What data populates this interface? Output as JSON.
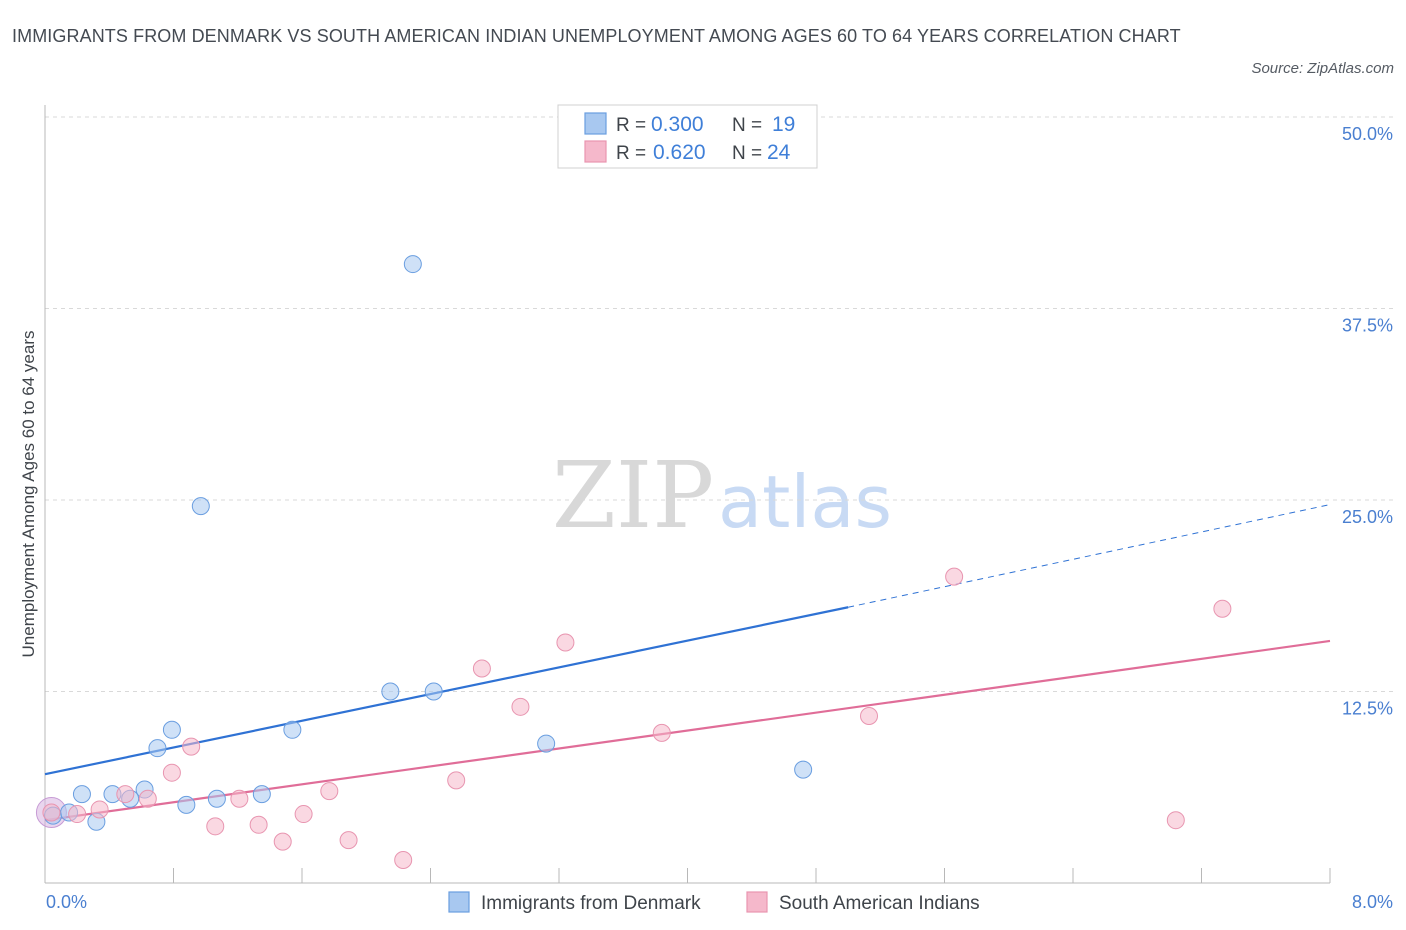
{
  "title": "IMMIGRANTS FROM DENMARK VS SOUTH AMERICAN INDIAN UNEMPLOYMENT AMONG AGES 60 TO 64 YEARS CORRELATION CHART",
  "source": "Source: ZipAtlas.com",
  "watermark": {
    "zip": "ZIP",
    "atlas": "atlas"
  },
  "legend_top": [
    {
      "r_label": "R = ",
      "r_value": "0.300",
      "n_label": "N = ",
      "n_value": "19",
      "color": "#a8c8f0"
    },
    {
      "r_label": "R = ",
      "r_value": "0.620",
      "n_label": "N = ",
      "n_value": "24",
      "color": "#f5b8cb"
    }
  ],
  "legend_bottom": [
    {
      "label": "Immigrants from Denmark",
      "color": "#a8c8f0"
    },
    {
      "label": "South American Indians",
      "color": "#f5b8cb"
    }
  ],
  "chart_data": {
    "type": "scatter",
    "title": "IMMIGRANTS FROM DENMARK VS SOUTH AMERICAN INDIAN UNEMPLOYMENT AMONG AGES 60 TO 64 YEARS CORRELATION CHART",
    "xlabel": "",
    "ylabel": "Unemployment Among Ages 60 to 64 years",
    "xlim": [
      0,
      8
    ],
    "ylim": [
      0,
      50
    ],
    "x_tick_labels": [
      "0.0%",
      "8.0%"
    ],
    "y_ticks": [
      12.5,
      25.0,
      37.5,
      50.0
    ],
    "y_tick_labels": [
      "12.5%",
      "25.0%",
      "37.5%",
      "50.0%"
    ],
    "grid": true,
    "series": [
      {
        "name": "Immigrants from Denmark",
        "color": "#a8c8f0",
        "stroke": "#6a9ee0",
        "line_color": "#2f72d4",
        "points": [
          {
            "x": 0.05,
            "y": 4.4
          },
          {
            "x": 0.15,
            "y": 4.6
          },
          {
            "x": 0.23,
            "y": 5.8
          },
          {
            "x": 0.32,
            "y": 4.0
          },
          {
            "x": 0.42,
            "y": 5.8
          },
          {
            "x": 0.53,
            "y": 5.5
          },
          {
            "x": 0.62,
            "y": 6.1
          },
          {
            "x": 0.7,
            "y": 8.8
          },
          {
            "x": 0.79,
            "y": 10.0
          },
          {
            "x": 0.88,
            "y": 5.1
          },
          {
            "x": 0.97,
            "y": 24.6
          },
          {
            "x": 1.07,
            "y": 5.5
          },
          {
            "x": 1.35,
            "y": 5.8
          },
          {
            "x": 1.54,
            "y": 10.0
          },
          {
            "x": 2.29,
            "y": 40.4
          },
          {
            "x": 2.15,
            "y": 12.5
          },
          {
            "x": 2.42,
            "y": 12.5
          },
          {
            "x": 3.12,
            "y": 9.1
          },
          {
            "x": 4.72,
            "y": 7.4
          }
        ],
        "trend": {
          "x0": 0.0,
          "y0": 7.1,
          "x1": 5.0,
          "y1": 18.0,
          "x_dash_end": 8.0,
          "y_dash_end": 24.7
        }
      },
      {
        "name": "South American Indians",
        "color": "#f5b8cb",
        "stroke": "#e895b0",
        "line_color": "#e06d98",
        "points": [
          {
            "x": 0.04,
            "y": 4.6
          },
          {
            "x": 0.2,
            "y": 4.5
          },
          {
            "x": 0.34,
            "y": 4.8
          },
          {
            "x": 0.5,
            "y": 5.8
          },
          {
            "x": 0.64,
            "y": 5.5
          },
          {
            "x": 0.79,
            "y": 7.2
          },
          {
            "x": 0.91,
            "y": 8.9
          },
          {
            "x": 1.06,
            "y": 3.7
          },
          {
            "x": 1.21,
            "y": 5.5
          },
          {
            "x": 1.33,
            "y": 3.8
          },
          {
            "x": 1.48,
            "y": 2.7
          },
          {
            "x": 1.61,
            "y": 4.5
          },
          {
            "x": 1.77,
            "y": 6.0
          },
          {
            "x": 1.89,
            "y": 2.8
          },
          {
            "x": 2.23,
            "y": 1.5
          },
          {
            "x": 2.56,
            "y": 6.7
          },
          {
            "x": 2.72,
            "y": 14.0
          },
          {
            "x": 2.96,
            "y": 11.5
          },
          {
            "x": 3.24,
            "y": 15.7
          },
          {
            "x": 3.84,
            "y": 9.8
          },
          {
            "x": 5.13,
            "y": 10.9
          },
          {
            "x": 5.66,
            "y": 20.0
          },
          {
            "x": 7.04,
            "y": 4.1
          },
          {
            "x": 7.33,
            "y": 17.9
          }
        ],
        "trend": {
          "x0": 0.0,
          "y0": 4.1,
          "x1": 8.0,
          "y1": 15.8
        }
      }
    ]
  }
}
